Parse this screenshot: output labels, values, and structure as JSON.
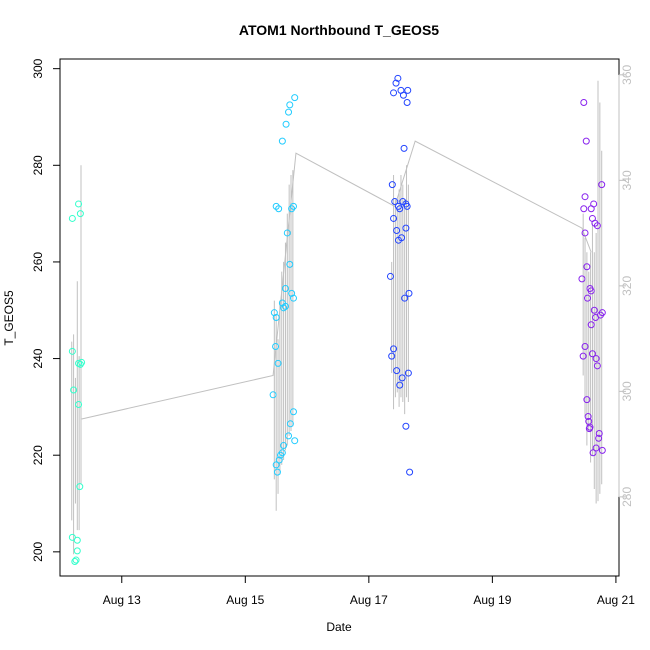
{
  "chart_data": {
    "type": "scatter",
    "title": "ATOM1 Northbound T_GEOS5",
    "xlabel": "Date",
    "ylabel": "T_GEOS5",
    "x_tick_labels": [
      "Aug 13",
      "Aug 15",
      "Aug 17",
      "Aug 19",
      "Aug 21"
    ],
    "x_tick_day_values": [
      13,
      15,
      17,
      19,
      21
    ],
    "xlim_days": [
      12.0,
      21.05
    ],
    "ylim": [
      195,
      302
    ],
    "y_ticks": [
      200,
      220,
      240,
      260,
      280,
      300
    ],
    "y2_ticks": [
      280,
      300,
      320,
      340,
      360
    ],
    "y2lim": [
      265,
      363
    ],
    "axis_color_right": "#c0c0c0",
    "line_color": "#c0c0c0",
    "grid": false,
    "color_scale": "cyan-to-violet by time",
    "points": [
      {
        "x": 12.2,
        "y": 269,
        "c": "#33ffcc"
      },
      {
        "x": 12.2,
        "y": 241.5,
        "c": "#33ffcc"
      },
      {
        "x": 12.22,
        "y": 233.5,
        "c": "#33ffcc"
      },
      {
        "x": 12.2,
        "y": 203,
        "c": "#33ffcc"
      },
      {
        "x": 12.24,
        "y": 198,
        "c": "#33ffcc"
      },
      {
        "x": 12.26,
        "y": 198.3,
        "c": "#33ffcc"
      },
      {
        "x": 12.28,
        "y": 200.2,
        "c": "#33ffcc"
      },
      {
        "x": 12.28,
        "y": 202.4,
        "c": "#33ffcc"
      },
      {
        "x": 12.3,
        "y": 272,
        "c": "#33ffcc"
      },
      {
        "x": 12.33,
        "y": 270,
        "c": "#33ffcc"
      },
      {
        "x": 12.3,
        "y": 239,
        "c": "#33ffcc"
      },
      {
        "x": 12.33,
        "y": 238.8,
        "c": "#33ffcc"
      },
      {
        "x": 12.35,
        "y": 239.2,
        "c": "#33ffcc"
      },
      {
        "x": 12.3,
        "y": 230.5,
        "c": "#33ffcc"
      },
      {
        "x": 12.32,
        "y": 213.5,
        "c": "#33ffcc"
      },
      {
        "x": 15.45,
        "y": 232.5,
        "c": "#22ccff"
      },
      {
        "x": 15.47,
        "y": 249.5,
        "c": "#22ccff"
      },
      {
        "x": 15.5,
        "y": 248.5,
        "c": "#22ccff"
      },
      {
        "x": 15.49,
        "y": 242.5,
        "c": "#22ccff"
      },
      {
        "x": 15.5,
        "y": 218,
        "c": "#22ccff"
      },
      {
        "x": 15.52,
        "y": 216.5,
        "c": "#22ccff"
      },
      {
        "x": 15.53,
        "y": 239,
        "c": "#22ccff"
      },
      {
        "x": 15.5,
        "y": 271.5,
        "c": "#22ccff"
      },
      {
        "x": 15.54,
        "y": 271,
        "c": "#22ccff"
      },
      {
        "x": 15.55,
        "y": 219,
        "c": "#22ccff"
      },
      {
        "x": 15.57,
        "y": 220,
        "c": "#22ccff"
      },
      {
        "x": 15.6,
        "y": 220.5,
        "c": "#22ccff"
      },
      {
        "x": 15.62,
        "y": 222,
        "c": "#22ccff"
      },
      {
        "x": 15.6,
        "y": 251.5,
        "c": "#22ccff"
      },
      {
        "x": 15.62,
        "y": 250.5,
        "c": "#22ccff"
      },
      {
        "x": 15.6,
        "y": 285,
        "c": "#22ccff"
      },
      {
        "x": 15.65,
        "y": 250.8,
        "c": "#22ccff"
      },
      {
        "x": 15.65,
        "y": 254.5,
        "c": "#22ccff"
      },
      {
        "x": 15.66,
        "y": 288.5,
        "c": "#22ccff"
      },
      {
        "x": 15.68,
        "y": 266,
        "c": "#22ccff"
      },
      {
        "x": 15.7,
        "y": 224,
        "c": "#22ccff"
      },
      {
        "x": 15.7,
        "y": 291,
        "c": "#22ccff"
      },
      {
        "x": 15.72,
        "y": 292.5,
        "c": "#22ccff"
      },
      {
        "x": 15.72,
        "y": 259.5,
        "c": "#22ccff"
      },
      {
        "x": 15.75,
        "y": 253.5,
        "c": "#22ccff"
      },
      {
        "x": 15.73,
        "y": 226.5,
        "c": "#22ccff"
      },
      {
        "x": 15.75,
        "y": 271,
        "c": "#22ccff"
      },
      {
        "x": 15.78,
        "y": 271.5,
        "c": "#22ccff"
      },
      {
        "x": 15.78,
        "y": 252.5,
        "c": "#22ccff"
      },
      {
        "x": 15.78,
        "y": 229,
        "c": "#22ccff"
      },
      {
        "x": 15.8,
        "y": 294,
        "c": "#22ccff"
      },
      {
        "x": 15.8,
        "y": 223,
        "c": "#22ccff"
      },
      {
        "x": 17.35,
        "y": 257,
        "c": "#2244ff"
      },
      {
        "x": 17.37,
        "y": 240.5,
        "c": "#2244ff"
      },
      {
        "x": 17.38,
        "y": 276,
        "c": "#2244ff"
      },
      {
        "x": 17.4,
        "y": 295,
        "c": "#2244ff"
      },
      {
        "x": 17.4,
        "y": 269,
        "c": "#2244ff"
      },
      {
        "x": 17.4,
        "y": 242,
        "c": "#2244ff"
      },
      {
        "x": 17.42,
        "y": 272.5,
        "c": "#2244ff"
      },
      {
        "x": 17.44,
        "y": 297,
        "c": "#2244ff"
      },
      {
        "x": 17.45,
        "y": 266.5,
        "c": "#2244ff"
      },
      {
        "x": 17.45,
        "y": 237.5,
        "c": "#2244ff"
      },
      {
        "x": 17.47,
        "y": 298,
        "c": "#2244ff"
      },
      {
        "x": 17.48,
        "y": 271.5,
        "c": "#2244ff"
      },
      {
        "x": 17.48,
        "y": 264.5,
        "c": "#2244ff"
      },
      {
        "x": 17.5,
        "y": 234.5,
        "c": "#2244ff"
      },
      {
        "x": 17.5,
        "y": 271,
        "c": "#2244ff"
      },
      {
        "x": 17.52,
        "y": 295.5,
        "c": "#2244ff"
      },
      {
        "x": 17.53,
        "y": 265,
        "c": "#2244ff"
      },
      {
        "x": 17.54,
        "y": 236,
        "c": "#2244ff"
      },
      {
        "x": 17.55,
        "y": 272.5,
        "c": "#2244ff"
      },
      {
        "x": 17.56,
        "y": 294.5,
        "c": "#2244ff"
      },
      {
        "x": 17.57,
        "y": 283.5,
        "c": "#2244ff"
      },
      {
        "x": 17.58,
        "y": 252.5,
        "c": "#2244ff"
      },
      {
        "x": 17.6,
        "y": 267,
        "c": "#2244ff"
      },
      {
        "x": 17.6,
        "y": 226,
        "c": "#2244ff"
      },
      {
        "x": 17.6,
        "y": 272,
        "c": "#2244ff"
      },
      {
        "x": 17.62,
        "y": 271.5,
        "c": "#2244ff"
      },
      {
        "x": 17.62,
        "y": 293,
        "c": "#2244ff"
      },
      {
        "x": 17.63,
        "y": 295.5,
        "c": "#2244ff"
      },
      {
        "x": 17.64,
        "y": 237,
        "c": "#2244ff"
      },
      {
        "x": 17.65,
        "y": 253.5,
        "c": "#2244ff"
      },
      {
        "x": 17.66,
        "y": 216.5,
        "c": "#2244ff"
      },
      {
        "x": 20.45,
        "y": 256.5,
        "c": "#8822ee"
      },
      {
        "x": 20.47,
        "y": 240.5,
        "c": "#8822ee"
      },
      {
        "x": 20.48,
        "y": 293,
        "c": "#8822ee"
      },
      {
        "x": 20.48,
        "y": 271,
        "c": "#8822ee"
      },
      {
        "x": 20.5,
        "y": 273.5,
        "c": "#8822ee"
      },
      {
        "x": 20.5,
        "y": 266,
        "c": "#8822ee"
      },
      {
        "x": 20.5,
        "y": 242.5,
        "c": "#8822ee"
      },
      {
        "x": 20.52,
        "y": 285,
        "c": "#8822ee"
      },
      {
        "x": 20.53,
        "y": 259,
        "c": "#8822ee"
      },
      {
        "x": 20.54,
        "y": 252.5,
        "c": "#8822ee"
      },
      {
        "x": 20.53,
        "y": 231.5,
        "c": "#8822ee"
      },
      {
        "x": 20.55,
        "y": 228,
        "c": "#8822ee"
      },
      {
        "x": 20.56,
        "y": 227,
        "c": "#8822ee"
      },
      {
        "x": 20.57,
        "y": 225.5,
        "c": "#8822ee"
      },
      {
        "x": 20.58,
        "y": 225.8,
        "c": "#8822ee"
      },
      {
        "x": 20.58,
        "y": 254.5,
        "c": "#8822ee"
      },
      {
        "x": 20.6,
        "y": 254,
        "c": "#8822ee"
      },
      {
        "x": 20.6,
        "y": 247,
        "c": "#8822ee"
      },
      {
        "x": 20.6,
        "y": 271,
        "c": "#8822ee"
      },
      {
        "x": 20.62,
        "y": 269,
        "c": "#8822ee"
      },
      {
        "x": 20.62,
        "y": 241,
        "c": "#8822ee"
      },
      {
        "x": 20.63,
        "y": 220.5,
        "c": "#8822ee"
      },
      {
        "x": 20.64,
        "y": 272,
        "c": "#8822ee"
      },
      {
        "x": 20.65,
        "y": 250,
        "c": "#8822ee"
      },
      {
        "x": 20.66,
        "y": 268,
        "c": "#8822ee"
      },
      {
        "x": 20.67,
        "y": 248.5,
        "c": "#8822ee"
      },
      {
        "x": 20.68,
        "y": 240,
        "c": "#8822ee"
      },
      {
        "x": 20.68,
        "y": 221.5,
        "c": "#8822ee"
      },
      {
        "x": 20.7,
        "y": 267.5,
        "c": "#8822ee"
      },
      {
        "x": 20.7,
        "y": 238.5,
        "c": "#8822ee"
      },
      {
        "x": 20.72,
        "y": 223.5,
        "c": "#8822ee"
      },
      {
        "x": 20.73,
        "y": 224.5,
        "c": "#8822ee"
      },
      {
        "x": 20.75,
        "y": 249,
        "c": "#8822ee"
      },
      {
        "x": 20.77,
        "y": 276,
        "c": "#8822ee"
      },
      {
        "x": 20.78,
        "y": 249.5,
        "c": "#8822ee"
      },
      {
        "x": 20.78,
        "y": 221,
        "c": "#8822ee"
      }
    ],
    "path": [
      [
        12.35,
        227.5
      ],
      [
        15.45,
        236.5
      ],
      [
        15.82,
        282.5
      ],
      [
        17.42,
        271.5
      ],
      [
        17.75,
        285
      ],
      [
        20.45,
        267
      ],
      [
        20.6,
        262
      ]
    ],
    "spikes": [
      {
        "x": 12.19,
        "y0": 206.5,
        "y1": 243.5
      },
      {
        "x": 12.22,
        "y0": 199.5,
        "y1": 245
      },
      {
        "x": 12.25,
        "y0": 210,
        "y1": 236
      },
      {
        "x": 12.28,
        "y0": 204.5,
        "y1": 256
      },
      {
        "x": 12.31,
        "y0": 204.5,
        "y1": 240.5
      },
      {
        "x": 12.34,
        "y0": 214,
        "y1": 280
      },
      {
        "x": 15.47,
        "y0": 215,
        "y1": 252
      },
      {
        "x": 15.5,
        "y0": 208.5,
        "y1": 249
      },
      {
        "x": 15.53,
        "y0": 212,
        "y1": 244
      },
      {
        "x": 15.56,
        "y0": 216,
        "y1": 252
      },
      {
        "x": 15.59,
        "y0": 218,
        "y1": 258
      },
      {
        "x": 15.62,
        "y0": 219,
        "y1": 260
      },
      {
        "x": 15.65,
        "y0": 221,
        "y1": 264
      },
      {
        "x": 15.68,
        "y0": 222,
        "y1": 270
      },
      {
        "x": 15.71,
        "y0": 224,
        "y1": 276
      },
      {
        "x": 15.74,
        "y0": 225,
        "y1": 278
      },
      {
        "x": 15.77,
        "y0": 226,
        "y1": 279
      },
      {
        "x": 17.37,
        "y0": 237,
        "y1": 260
      },
      {
        "x": 17.4,
        "y0": 229.5,
        "y1": 278
      },
      {
        "x": 17.43,
        "y0": 232,
        "y1": 273
      },
      {
        "x": 17.46,
        "y0": 233,
        "y1": 271
      },
      {
        "x": 17.49,
        "y0": 230,
        "y1": 275
      },
      {
        "x": 17.52,
        "y0": 232,
        "y1": 278
      },
      {
        "x": 17.55,
        "y0": 231,
        "y1": 276
      },
      {
        "x": 17.58,
        "y0": 228.5,
        "y1": 273
      },
      {
        "x": 17.61,
        "y0": 232,
        "y1": 280
      },
      {
        "x": 17.64,
        "y0": 231,
        "y1": 276
      },
      {
        "x": 20.47,
        "y0": 236.5,
        "y1": 270
      },
      {
        "x": 20.5,
        "y0": 228,
        "y1": 265
      },
      {
        "x": 20.53,
        "y0": 222,
        "y1": 262
      },
      {
        "x": 20.56,
        "y0": 225,
        "y1": 258
      },
      {
        "x": 20.59,
        "y0": 218.5,
        "y1": 262
      },
      {
        "x": 20.62,
        "y0": 220,
        "y1": 268
      },
      {
        "x": 20.65,
        "y0": 213,
        "y1": 262
      },
      {
        "x": 20.68,
        "y0": 210,
        "y1": 266
      },
      {
        "x": 20.71,
        "y0": 210.5,
        "y1": 297.5
      },
      {
        "x": 20.74,
        "y0": 212,
        "y1": 293
      },
      {
        "x": 20.77,
        "y0": 214,
        "y1": 283
      }
    ]
  }
}
